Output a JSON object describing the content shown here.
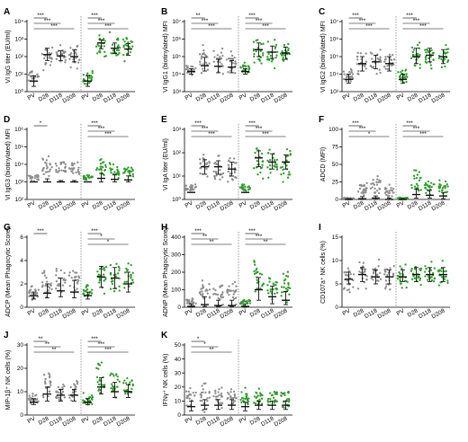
{
  "colors": {
    "gray": "#8c8c8c",
    "green": "#2e9b2a",
    "dark": "#111111"
  },
  "group_labels": [
    "PV",
    "D28",
    "D118",
    "D208"
  ],
  "chart_data": [
    {
      "panel": "A",
      "type": "scatter",
      "ylabel": "VI IgG titer (EU/ml)",
      "scale": "log",
      "ylim": [
        1,
        10000
      ],
      "yticks": [
        1,
        10,
        100,
        1000,
        10000
      ],
      "ytick_labels": [
        "10⁰",
        "10¹",
        "10²",
        "10³",
        "10⁴"
      ],
      "medians": [
        4,
        130,
        110,
        100,
        4,
        600,
        300,
        270
      ],
      "iqr": [
        [
          2,
          8
        ],
        [
          60,
          300
        ],
        [
          60,
          220
        ],
        [
          50,
          250
        ],
        [
          2,
          8
        ],
        [
          280,
          900
        ],
        [
          150,
          600
        ],
        [
          120,
          550
        ]
      ],
      "spread": [
        [
          1.5,
          30
        ],
        [
          10,
          900
        ],
        [
          15,
          900
        ],
        [
          10,
          900
        ],
        [
          1.5,
          30
        ],
        [
          50,
          4000
        ],
        [
          20,
          3000
        ],
        [
          30,
          2500
        ]
      ],
      "sig_left": [
        "***",
        "***",
        "***"
      ],
      "sig_right": [
        "***",
        "***",
        "***"
      ]
    },
    {
      "panel": "B",
      "type": "scatter",
      "ylabel": "VI IgG1 (biotinylated) MFI",
      "scale": "log",
      "ylim": [
        1000,
        10000000
      ],
      "yticks": [
        1000,
        10000,
        100000,
        1000000,
        10000000
      ],
      "ytick_labels": [
        "10³",
        "10⁴",
        "10⁵",
        "10⁶",
        "10⁷"
      ],
      "medians": [
        14000,
        30000,
        28000,
        25000,
        14000,
        250000,
        180000,
        160000
      ],
      "iqr": [
        [
          10000,
          20000
        ],
        [
          15000,
          90000
        ],
        [
          12000,
          70000
        ],
        [
          12000,
          60000
        ],
        [
          10000,
          20000
        ],
        [
          100000,
          600000
        ],
        [
          80000,
          400000
        ],
        [
          70000,
          350000
        ]
      ],
      "spread": [
        [
          8000,
          50000
        ],
        [
          7000,
          800000
        ],
        [
          6000,
          600000
        ],
        [
          6000,
          500000
        ],
        [
          8000,
          50000
        ],
        [
          15000,
          2000000
        ],
        [
          15000,
          1500000
        ],
        [
          15000,
          1200000
        ]
      ],
      "sig_left": [
        "**",
        "***",
        "***"
      ],
      "sig_right": [
        "***",
        "***",
        "***"
      ]
    },
    {
      "panel": "C",
      "type": "scatter",
      "ylabel": "VI IgG2 (biotinylated) MFI",
      "scale": "log",
      "ylim": [
        1000,
        10000000
      ],
      "yticks": [
        1000,
        10000,
        100000,
        1000000,
        10000000
      ],
      "ytick_labels": [
        "10³",
        "10⁴",
        "10⁵",
        "10⁶",
        "10⁷"
      ],
      "medians": [
        5000,
        40000,
        50000,
        40000,
        5000,
        100000,
        120000,
        100000
      ],
      "iqr": [
        [
          3000,
          10000
        ],
        [
          15000,
          100000
        ],
        [
          20000,
          120000
        ],
        [
          15000,
          100000
        ],
        [
          3000,
          10000
        ],
        [
          40000,
          300000
        ],
        [
          50000,
          300000
        ],
        [
          40000,
          250000
        ]
      ],
      "spread": [
        [
          2000,
          30000
        ],
        [
          5000,
          500000
        ],
        [
          5000,
          500000
        ],
        [
          5000,
          400000
        ],
        [
          2000,
          30000
        ],
        [
          8000,
          1500000
        ],
        [
          10000,
          1200000
        ],
        [
          10000,
          1000000
        ]
      ],
      "sig_left": [
        "***",
        "***",
        "***"
      ],
      "sig_right": [
        "***",
        "***",
        "***"
      ]
    },
    {
      "panel": "D",
      "type": "scatter",
      "ylabel": "VI IgG3 (biotinylated) MFI",
      "scale": "log",
      "ylim": [
        100,
        1000000
      ],
      "yticks": [
        100,
        1000,
        10000,
        100000,
        1000000
      ],
      "ytick_labels": [
        "10²",
        "10³",
        "10⁴",
        "10⁵",
        "10⁶"
      ],
      "medians": [
        1000,
        1000,
        1000,
        1000,
        1000,
        1600,
        1400,
        1300
      ],
      "iqr": [
        [
          1000,
          1000
        ],
        [
          1000,
          1500
        ],
        [
          1000,
          1200
        ],
        [
          1000,
          1200
        ],
        [
          1000,
          1000
        ],
        [
          1000,
          3000
        ],
        [
          1000,
          2500
        ],
        [
          1000,
          2200
        ]
      ],
      "spread": [
        [
          1000,
          3000
        ],
        [
          1000,
          50000
        ],
        [
          1000,
          30000
        ],
        [
          1000,
          20000
        ],
        [
          1000,
          3000
        ],
        [
          1000,
          30000
        ],
        [
          1000,
          15000
        ],
        [
          1000,
          12000
        ]
      ],
      "sig_left": [
        "*"
      ],
      "sig_right": [
        "***",
        "***",
        "***"
      ]
    },
    {
      "panel": "E",
      "type": "scatter",
      "ylabel": "VI IgA titer (EU/ml)",
      "scale": "log",
      "ylim": [
        1,
        1000
      ],
      "yticks": [
        1,
        10,
        100,
        1000
      ],
      "ytick_labels": [
        "10⁰",
        "10¹",
        "10²",
        "10³"
      ],
      "medians": [
        2,
        25,
        25,
        20,
        2,
        60,
        40,
        40
      ],
      "iqr": [
        [
          2,
          2
        ],
        [
          12,
          50
        ],
        [
          12,
          45
        ],
        [
          10,
          40
        ],
        [
          2,
          2
        ],
        [
          25,
          120
        ],
        [
          20,
          90
        ],
        [
          20,
          80
        ]
      ],
      "spread": [
        [
          2,
          5
        ],
        [
          3,
          200
        ],
        [
          3,
          150
        ],
        [
          3,
          120
        ],
        [
          2,
          5
        ],
        [
          3,
          500
        ],
        [
          3,
          350
        ],
        [
          3,
          300
        ]
      ],
      "sig_left": [
        "***",
        "***",
        "***"
      ],
      "sig_right": [
        "***",
        "***",
        "***"
      ]
    },
    {
      "panel": "F",
      "type": "scatter",
      "ylabel": "ADCD (MFI)",
      "scale": "linear",
      "ylim": [
        0,
        100
      ],
      "yticks": [
        0,
        25,
        50,
        75,
        100
      ],
      "ytick_labels": [
        "0",
        "25",
        "50",
        "75",
        "100"
      ],
      "medians": [
        0,
        1,
        2,
        0,
        0,
        7,
        6,
        5
      ],
      "iqr": [
        [
          0,
          1
        ],
        [
          0,
          4
        ],
        [
          0,
          5
        ],
        [
          0,
          2
        ],
        [
          0,
          1
        ],
        [
          2,
          15
        ],
        [
          2,
          13
        ],
        [
          1,
          10
        ]
      ],
      "spread": [
        [
          0,
          3
        ],
        [
          0,
          30
        ],
        [
          0,
          45
        ],
        [
          0,
          25
        ],
        [
          0,
          3
        ],
        [
          0,
          50
        ],
        [
          0,
          35
        ],
        [
          0,
          30
        ]
      ],
      "sig_left": [
        "***",
        "***",
        "*"
      ],
      "sig_right": [
        "***",
        "***",
        "***"
      ]
    },
    {
      "panel": "G",
      "type": "scatter",
      "ylabel": "ADCP (Mean Phagocytic Score)",
      "scale": "linear",
      "ylim": [
        0,
        6
      ],
      "yticks": [
        0,
        2,
        4,
        6
      ],
      "ytick_labels": [
        "0",
        "2",
        "4",
        "6"
      ],
      "medians": [
        1,
        1.2,
        1.4,
        1.3,
        1,
        2.6,
        2.5,
        2
      ],
      "iqr": [
        [
          0.7,
          1.3
        ],
        [
          0.8,
          2
        ],
        [
          0.9,
          2.5
        ],
        [
          0.8,
          2.3
        ],
        [
          0.7,
          1.3
        ],
        [
          1.7,
          3.5
        ],
        [
          1.6,
          3.4
        ],
        [
          1.3,
          3
        ]
      ],
      "spread": [
        [
          0.3,
          2.3
        ],
        [
          0.3,
          3.8
        ],
        [
          0.3,
          4.3
        ],
        [
          0.3,
          4
        ],
        [
          0.3,
          2.3
        ],
        [
          0.5,
          5
        ],
        [
          0.5,
          4.8
        ],
        [
          0.4,
          4.5
        ]
      ],
      "sig_left": [
        "***"
      ],
      "sig_right": [
        "***",
        "*",
        "*"
      ]
    },
    {
      "panel": "H",
      "type": "scatter",
      "ylabel": "ADNP (Mean Phagocytic Score)",
      "scale": "linear",
      "ylim": [
        0,
        400
      ],
      "yticks": [
        0,
        100,
        200,
        300,
        400
      ],
      "ytick_labels": [
        "0",
        "100",
        "200",
        "300",
        "400"
      ],
      "medians": [
        5,
        15,
        10,
        10,
        5,
        100,
        60,
        40
      ],
      "iqr": [
        [
          0,
          20
        ],
        [
          5,
          60
        ],
        [
          5,
          40
        ],
        [
          5,
          40
        ],
        [
          0,
          20
        ],
        [
          40,
          170
        ],
        [
          20,
          120
        ],
        [
          15,
          90
        ]
      ],
      "spread": [
        [
          0,
          60
        ],
        [
          0,
          200
        ],
        [
          0,
          180
        ],
        [
          0,
          160
        ],
        [
          0,
          60
        ],
        [
          0,
          320
        ],
        [
          0,
          280
        ],
        [
          0,
          250
        ]
      ],
      "sig_left": [
        "***",
        "**",
        "**"
      ],
      "sig_right": [
        "***",
        "***",
        "**"
      ]
    },
    {
      "panel": "I",
      "type": "scatter",
      "ylabel": "CD107a⁺ NK cells (%)",
      "scale": "linear",
      "ylim": [
        0,
        15
      ],
      "yticks": [
        0,
        5,
        10,
        15
      ],
      "ytick_labels": [
        "0",
        "5",
        "10",
        "15"
      ],
      "medians": [
        6,
        7,
        6.5,
        6.5,
        6.5,
        7,
        7,
        7
      ],
      "iqr": [
        [
          5,
          7.5
        ],
        [
          5.5,
          8.5
        ],
        [
          5,
          8
        ],
        [
          5,
          8
        ],
        [
          5.5,
          8
        ],
        [
          5.5,
          8.5
        ],
        [
          5.5,
          8.5
        ],
        [
          5.5,
          8.5
        ]
      ],
      "spread": [
        [
          2,
          10
        ],
        [
          3,
          11
        ],
        [
          3,
          10.5
        ],
        [
          3,
          10.5
        ],
        [
          3,
          10
        ],
        [
          3,
          11
        ],
        [
          3,
          11
        ],
        [
          3,
          11
        ]
      ],
      "sig_left": [],
      "sig_right": []
    },
    {
      "panel": "J",
      "type": "scatter",
      "ylabel": "MIP-1β⁺ NK cells (%)",
      "scale": "linear",
      "ylim": [
        0,
        30
      ],
      "yticks": [
        0,
        10,
        20,
        30
      ],
      "ytick_labels": [
        "0",
        "10",
        "20",
        "30"
      ],
      "medians": [
        5.5,
        9,
        8.5,
        8.5,
        5.5,
        12,
        10,
        10
      ],
      "iqr": [
        [
          4.5,
          7
        ],
        [
          6,
          12
        ],
        [
          6,
          11
        ],
        [
          6,
          11
        ],
        [
          4.5,
          7
        ],
        [
          9,
          16
        ],
        [
          7.5,
          14
        ],
        [
          7.5,
          13
        ]
      ],
      "spread": [
        [
          3,
          10
        ],
        [
          4,
          22
        ],
        [
          4,
          18
        ],
        [
          4,
          17
        ],
        [
          3,
          10
        ],
        [
          5,
          28
        ],
        [
          5,
          22
        ],
        [
          5,
          20
        ]
      ],
      "sig_left": [
        "**",
        "**",
        "**"
      ],
      "sig_right": [
        "***",
        "***",
        "***"
      ]
    },
    {
      "panel": "K",
      "type": "scatter",
      "ylabel": "IFNγ⁺ NK cells (%)",
      "scale": "linear",
      "ylim": [
        0,
        50
      ],
      "yticks": [
        0,
        10,
        20,
        30,
        40,
        50
      ],
      "ytick_labels": [
        "0",
        "10",
        "20",
        "30",
        "40",
        "50"
      ],
      "medians": [
        6,
        7,
        7,
        7,
        6,
        7,
        7,
        7
      ],
      "iqr": [
        [
          3,
          10
        ],
        [
          4,
          11
        ],
        [
          4,
          11
        ],
        [
          4,
          11
        ],
        [
          3,
          9
        ],
        [
          4,
          10
        ],
        [
          4,
          10
        ],
        [
          4,
          10
        ]
      ],
      "spread": [
        [
          1,
          22
        ],
        [
          1,
          28
        ],
        [
          1,
          25
        ],
        [
          1,
          24
        ],
        [
          1,
          20
        ],
        [
          1,
          22
        ],
        [
          1,
          22
        ],
        [
          1,
          20
        ]
      ],
      "sig_left": [
        "*",
        "*",
        "**"
      ],
      "sig_right": []
    }
  ]
}
